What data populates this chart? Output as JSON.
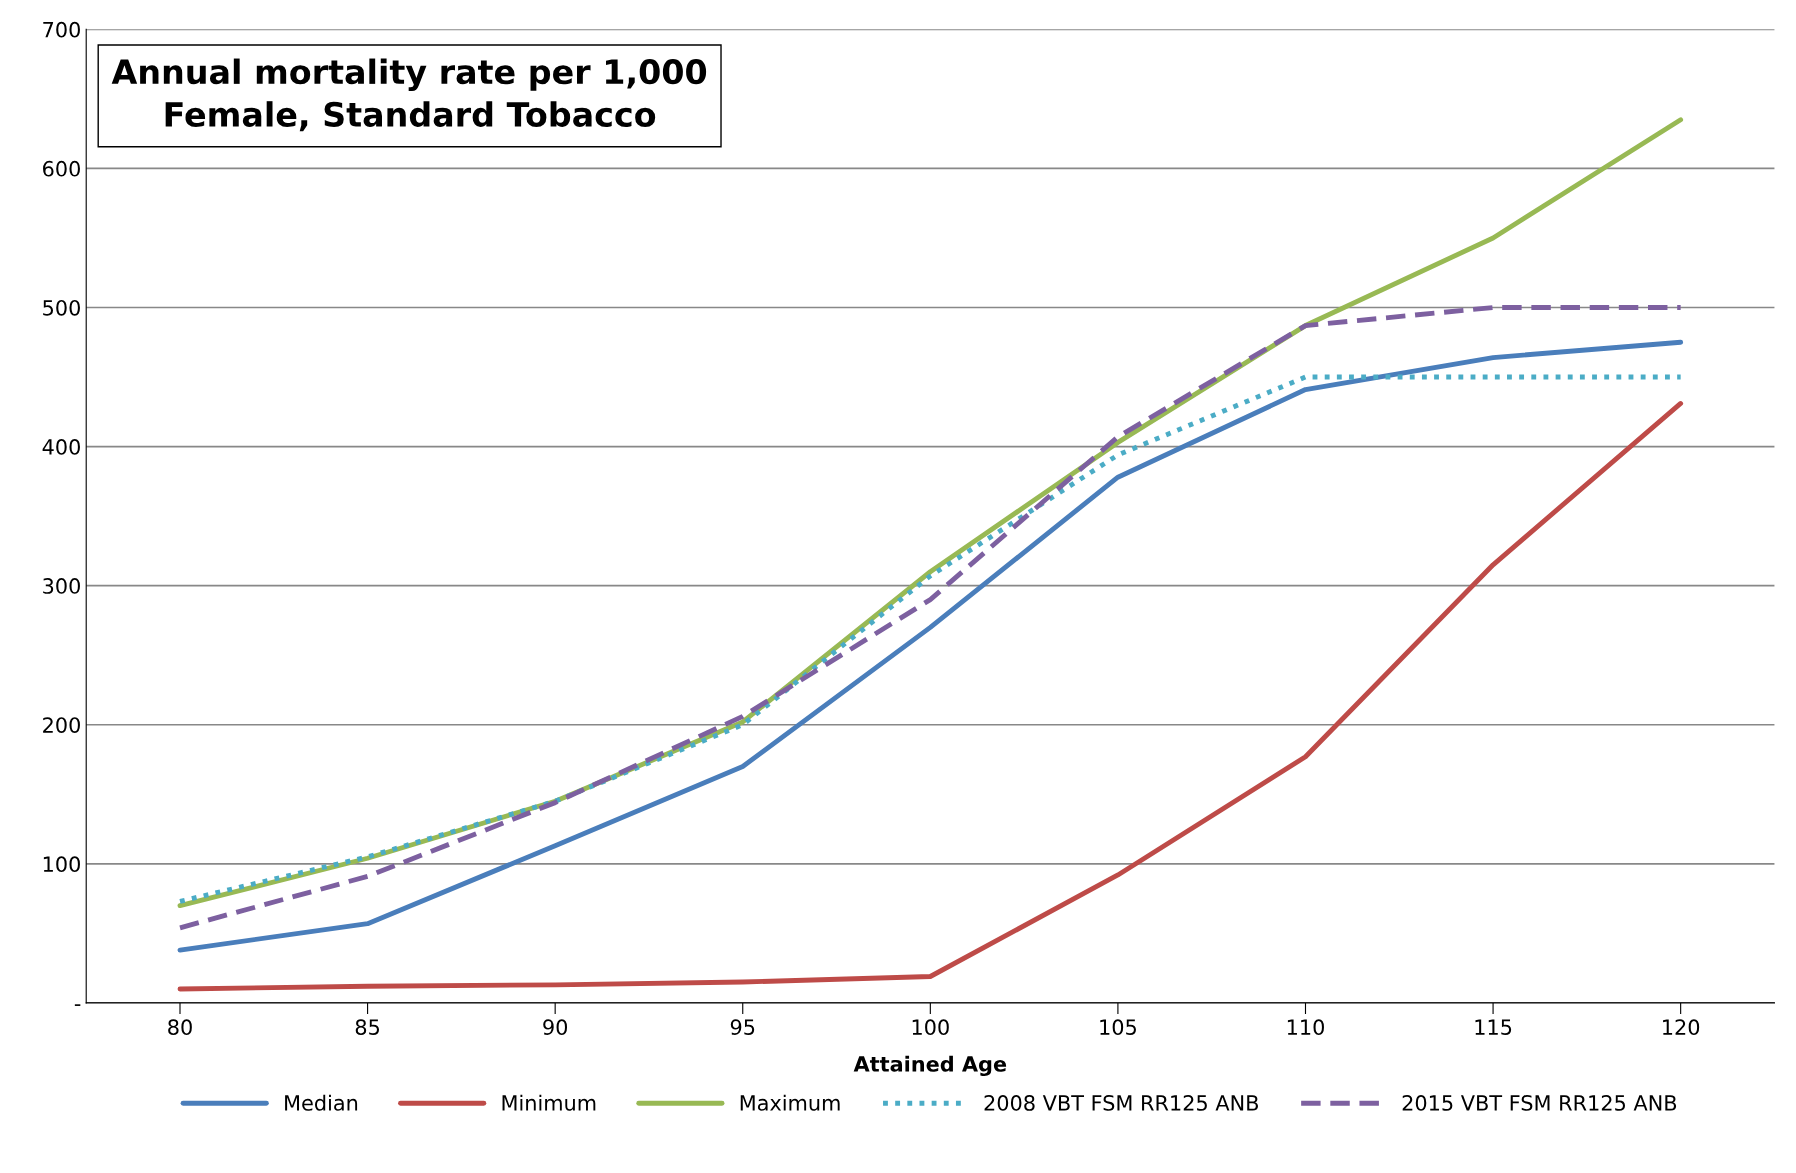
{
  "chart_data": {
    "type": "line",
    "title": "Annual mortality rate per 1,000\nFemale, Standard Tobacco",
    "xlabel": "Attained Age",
    "categories": [
      "80",
      "85",
      "90",
      "95",
      "100",
      "105",
      "110",
      "115",
      "120"
    ],
    "series": [
      {
        "name": "Median",
        "color": "#4a7ebb",
        "line_style": "solid",
        "values": [
          38,
          57,
          113,
          170,
          270,
          378,
          441,
          464,
          475
        ]
      },
      {
        "name": "Minimum",
        "color": "#be4b48",
        "line_style": "solid",
        "values": [
          10,
          12,
          13,
          15,
          19,
          92,
          177,
          315,
          431
        ]
      },
      {
        "name": "Maximum",
        "color": "#98b954",
        "line_style": "solid",
        "values": [
          70,
          104,
          145,
          202,
          310,
          403,
          487,
          550,
          635
        ]
      },
      {
        "name": "2008 VBT FSM RR125 ANB",
        "color": "#4bacc6",
        "line_style": "dotted",
        "values": [
          73,
          105,
          145,
          200,
          307,
          394,
          450,
          450,
          450
        ]
      },
      {
        "name": "2015 VBT FSM RR125 ANB",
        "color": "#7d60a0",
        "line_style": "dashed",
        "values": [
          54,
          91,
          144,
          206,
          290,
          407,
          487,
          500,
          500
        ]
      }
    ],
    "ylim": [
      0,
      700
    ],
    "yticks": [
      {
        "value": 0,
        "label": "-"
      },
      100,
      200,
      300,
      400,
      500,
      600,
      700
    ],
    "grid": "y",
    "legend": "bottom",
    "marker": "none"
  }
}
